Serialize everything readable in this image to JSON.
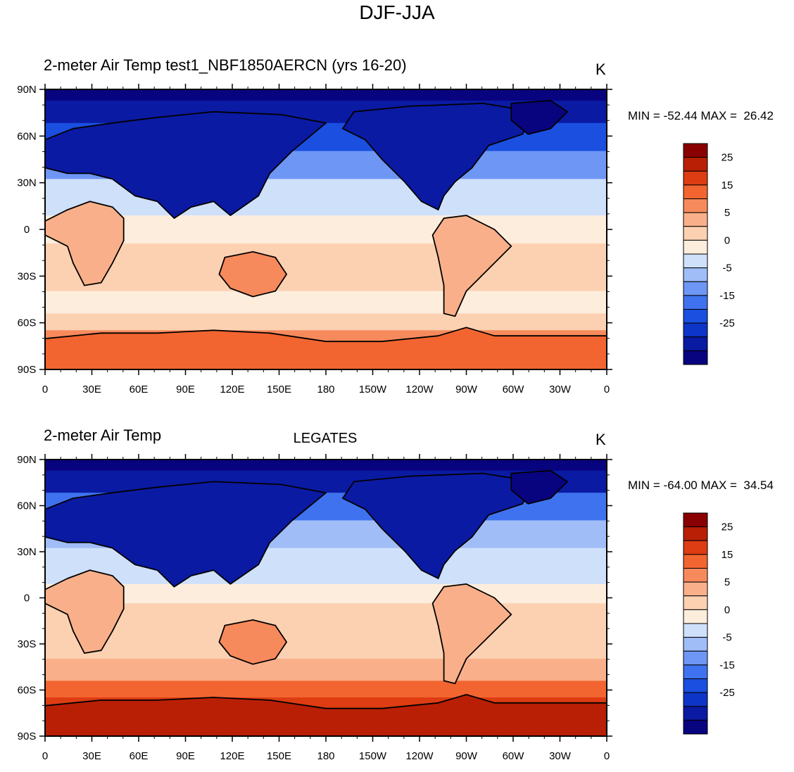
{
  "title": "DJF-JJA",
  "colors": {
    "levels": [
      "#08037f",
      "#0a1aa3",
      "#0d35c8",
      "#1a4fe0",
      "#3f72ee",
      "#6e96f5",
      "#a0bdf8",
      "#cfe0fb",
      "#fdeddc",
      "#fcd1b2",
      "#f9b08a",
      "#f78a5c",
      "#f26530",
      "#de3c12",
      "#b91f05",
      "#8a0000"
    ],
    "land_outline": "#000000"
  },
  "panels": [
    {
      "left_title": "2-meter Air Temp  test1_NBF1850AERCN (yrs 16-20)",
      "center_title": "",
      "units": "K",
      "min_label": "MIN = -52.44",
      "max_label": "MAX =  26.42",
      "colorbar_labels": [
        "25",
        "15",
        "5",
        "0",
        "-5",
        "-15",
        "-25"
      ]
    },
    {
      "left_title": "2-meter Air Temp",
      "center_title": "LEGATES",
      "units": "K",
      "min_label": "MIN = -64.00",
      "max_label": "MAX =  34.54",
      "colorbar_labels": [
        "25",
        "15",
        "5",
        "0",
        "-5",
        "-15",
        "-25"
      ]
    }
  ],
  "axes": {
    "lat_labels": [
      "90N",
      "60N",
      "30N",
      "0",
      "30S",
      "60S",
      "90S"
    ],
    "lon_labels": [
      "0",
      "30E",
      "60E",
      "90E",
      "120E",
      "150E",
      "180",
      "150W",
      "120W",
      "90W",
      "60W",
      "30W",
      "0"
    ]
  }
}
